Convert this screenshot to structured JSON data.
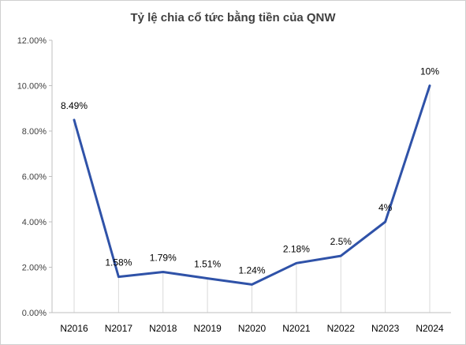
{
  "chart_data": {
    "type": "line",
    "title": "Tỷ lệ chia cổ tức bằng tiền của QNW",
    "categories": [
      "N2016",
      "N2017",
      "N2018",
      "N2019",
      "N2020",
      "N2021",
      "N2022",
      "N2023",
      "N2024"
    ],
    "series": [
      {
        "values": [
          8.49,
          1.58,
          1.79,
          1.51,
          1.24,
          2.18,
          2.5,
          4,
          10
        ],
        "data_labels": [
          "8.49%",
          "1.58%",
          "1.79%",
          "1.51%",
          "1.24%",
          "2.18%",
          "2.5%",
          "4%",
          "10%"
        ],
        "color": "#2f52a8"
      }
    ],
    "yticks": [
      "0.00%",
      "2.00%",
      "4.00%",
      "6.00%",
      "8.00%",
      "10.00%",
      "12.00%"
    ],
    "ylim": [
      0,
      12
    ],
    "grid": "vertical drop lines at each category",
    "legend": "none"
  }
}
